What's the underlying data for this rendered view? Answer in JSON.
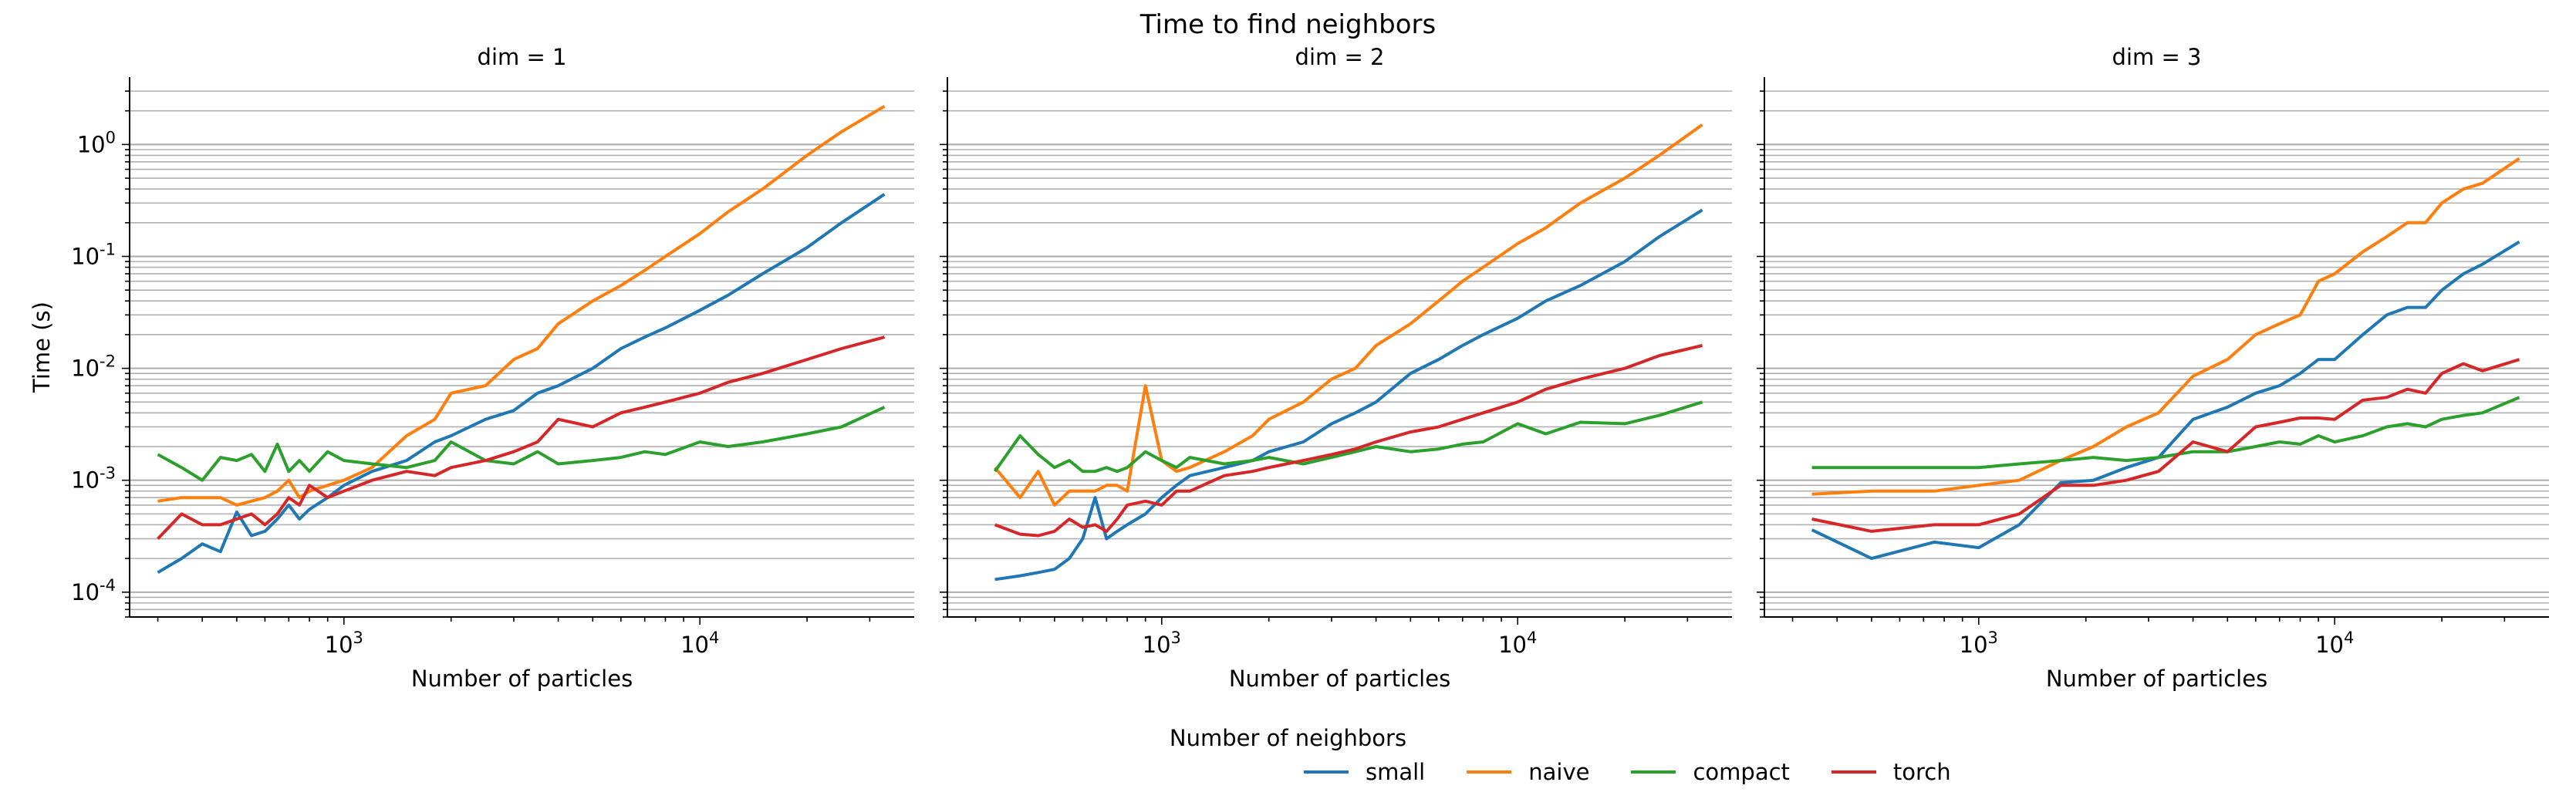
{
  "title": "Time to find neighbors",
  "legend": {
    "title": "Number of neighbors",
    "position": "bottom-center",
    "entries": [
      {
        "name": "small",
        "color": "#1f77b4"
      },
      {
        "name": "naive",
        "color": "#ff7f0e"
      },
      {
        "name": "compact",
        "color": "#2ca02c"
      },
      {
        "name": "torch",
        "color": "#d62728"
      }
    ]
  },
  "chart_data": [
    {
      "type": "line",
      "title": "dim = 1",
      "xlabel": "Number of particles",
      "ylabel": "Time (s)",
      "xscale": "log",
      "yscale": "log",
      "xlim": [
        250,
        40000
      ],
      "ylim": [
        6e-05,
        4
      ],
      "xticks": [
        "10^3",
        "10^4"
      ],
      "yticks": [
        "10^-4",
        "10^-3",
        "10^-2",
        "10^-1",
        "10^0"
      ],
      "grid": true,
      "series": [
        {
          "name": "small",
          "x": [
            300,
            350,
            400,
            450,
            500,
            550,
            600,
            650,
            700,
            750,
            800,
            900,
            1000,
            1200,
            1500,
            1800,
            2000,
            2500,
            3000,
            3500,
            4000,
            5000,
            6000,
            7000,
            8000,
            10000,
            12000,
            15000,
            20000,
            25000,
            33000
          ],
          "y": [
            0.00015,
            0.0002,
            0.00027,
            0.00023,
            0.00052,
            0.00032,
            0.00035,
            0.00045,
            0.0006,
            0.00045,
            0.00055,
            0.0007,
            0.0009,
            0.0012,
            0.0015,
            0.0022,
            0.0025,
            0.0035,
            0.0042,
            0.006,
            0.007,
            0.01,
            0.015,
            0.019,
            0.023,
            0.033,
            0.045,
            0.07,
            0.12,
            0.2,
            0.36
          ]
        },
        {
          "name": "naive",
          "x": [
            300,
            350,
            400,
            450,
            500,
            550,
            600,
            650,
            700,
            750,
            800,
            900,
            1000,
            1200,
            1500,
            1800,
            2000,
            2500,
            3000,
            3500,
            4000,
            5000,
            6000,
            7000,
            8000,
            10000,
            12000,
            15000,
            20000,
            25000,
            33000
          ],
          "y": [
            0.00065,
            0.0007,
            0.0007,
            0.0007,
            0.0006,
            0.00065,
            0.0007,
            0.0008,
            0.001,
            0.0007,
            0.0008,
            0.0009,
            0.001,
            0.0013,
            0.0025,
            0.0035,
            0.006,
            0.007,
            0.012,
            0.015,
            0.025,
            0.04,
            0.055,
            0.075,
            0.1,
            0.16,
            0.25,
            0.4,
            0.8,
            1.3,
            2.2
          ]
        },
        {
          "name": "compact",
          "x": [
            300,
            350,
            400,
            450,
            500,
            550,
            600,
            650,
            700,
            750,
            800,
            900,
            1000,
            1200,
            1500,
            1800,
            2000,
            2500,
            3000,
            3500,
            4000,
            5000,
            6000,
            7000,
            8000,
            10000,
            12000,
            15000,
            20000,
            25000,
            33000
          ],
          "y": [
            0.0017,
            0.0013,
            0.001,
            0.0016,
            0.0015,
            0.0017,
            0.0012,
            0.0021,
            0.0012,
            0.0015,
            0.0012,
            0.0018,
            0.0015,
            0.0014,
            0.0013,
            0.0015,
            0.0022,
            0.0015,
            0.0014,
            0.0018,
            0.0014,
            0.0015,
            0.0016,
            0.0018,
            0.0017,
            0.0022,
            0.002,
            0.0022,
            0.0026,
            0.003,
            0.0045
          ]
        },
        {
          "name": "torch",
          "x": [
            300,
            350,
            400,
            450,
            500,
            550,
            600,
            650,
            700,
            750,
            800,
            900,
            1000,
            1200,
            1500,
            1800,
            2000,
            2500,
            3000,
            3500,
            4000,
            5000,
            6000,
            7000,
            8000,
            10000,
            12000,
            15000,
            20000,
            25000,
            33000
          ],
          "y": [
            0.0003,
            0.0005,
            0.0004,
            0.0004,
            0.00045,
            0.0005,
            0.0004,
            0.0005,
            0.0007,
            0.0006,
            0.0009,
            0.0007,
            0.0008,
            0.001,
            0.0012,
            0.0011,
            0.0013,
            0.0015,
            0.0018,
            0.0022,
            0.0035,
            0.003,
            0.004,
            0.0045,
            0.005,
            0.006,
            0.0075,
            0.009,
            0.012,
            0.015,
            0.019
          ]
        }
      ]
    },
    {
      "type": "line",
      "title": "dim = 2",
      "xlabel": "Number of particles",
      "ylabel": "",
      "xscale": "log",
      "yscale": "log",
      "xlim": [
        250,
        40000
      ],
      "ylim": [
        6e-05,
        4
      ],
      "xticks": [
        "10^3",
        "10^4"
      ],
      "yticks": [],
      "grid": true,
      "series": [
        {
          "name": "small",
          "x": [
            340,
            400,
            450,
            500,
            550,
            600,
            650,
            700,
            750,
            800,
            900,
            1000,
            1100,
            1200,
            1500,
            1800,
            2000,
            2500,
            3000,
            3500,
            4000,
            5000,
            6000,
            7000,
            8000,
            10000,
            12000,
            15000,
            20000,
            25000,
            33000
          ],
          "y": [
            0.00013,
            0.00014,
            0.00015,
            0.00016,
            0.0002,
            0.0003,
            0.0007,
            0.0003,
            0.00035,
            0.0004,
            0.0005,
            0.0007,
            0.0009,
            0.0011,
            0.0013,
            0.0015,
            0.0018,
            0.0022,
            0.0032,
            0.004,
            0.005,
            0.009,
            0.012,
            0.016,
            0.02,
            0.028,
            0.04,
            0.055,
            0.09,
            0.15,
            0.26
          ]
        },
        {
          "name": "naive",
          "x": [
            340,
            400,
            450,
            500,
            550,
            600,
            650,
            700,
            750,
            800,
            900,
            1000,
            1100,
            1200,
            1500,
            1800,
            2000,
            2500,
            3000,
            3500,
            4000,
            5000,
            6000,
            7000,
            8000,
            10000,
            12000,
            15000,
            20000,
            25000,
            33000
          ],
          "y": [
            0.0013,
            0.0007,
            0.0012,
            0.0006,
            0.0008,
            0.0008,
            0.0008,
            0.0009,
            0.0009,
            0.0008,
            0.007,
            0.0015,
            0.0012,
            0.0013,
            0.0018,
            0.0025,
            0.0035,
            0.005,
            0.008,
            0.01,
            0.016,
            0.025,
            0.04,
            0.06,
            0.08,
            0.13,
            0.18,
            0.3,
            0.5,
            0.8,
            1.5
          ]
        },
        {
          "name": "compact",
          "x": [
            340,
            400,
            450,
            500,
            550,
            600,
            650,
            700,
            750,
            800,
            900,
            1000,
            1100,
            1200,
            1500,
            1800,
            2000,
            2500,
            3000,
            3500,
            4000,
            5000,
            6000,
            7000,
            8000,
            10000,
            12000,
            15000,
            20000,
            25000,
            33000
          ],
          "y": [
            0.0012,
            0.0025,
            0.0017,
            0.0013,
            0.0015,
            0.0012,
            0.0012,
            0.0013,
            0.0012,
            0.0013,
            0.0018,
            0.0015,
            0.0013,
            0.0016,
            0.0014,
            0.0015,
            0.0016,
            0.0014,
            0.0016,
            0.0018,
            0.002,
            0.0018,
            0.0019,
            0.0021,
            0.0022,
            0.0032,
            0.0026,
            0.0033,
            0.0032,
            0.0038,
            0.005
          ]
        },
        {
          "name": "torch",
          "x": [
            340,
            400,
            450,
            500,
            550,
            600,
            650,
            700,
            750,
            800,
            900,
            1000,
            1100,
            1200,
            1500,
            1800,
            2000,
            2500,
            3000,
            3500,
            4000,
            5000,
            6000,
            7000,
            8000,
            10000,
            12000,
            15000,
            20000,
            25000,
            33000
          ],
          "y": [
            0.0004,
            0.00033,
            0.00032,
            0.00035,
            0.00045,
            0.00038,
            0.0004,
            0.00035,
            0.00045,
            0.0006,
            0.00065,
            0.0006,
            0.0008,
            0.0008,
            0.0011,
            0.0012,
            0.0013,
            0.0015,
            0.0017,
            0.0019,
            0.0022,
            0.0027,
            0.003,
            0.0035,
            0.004,
            0.005,
            0.0065,
            0.008,
            0.01,
            0.013,
            0.016
          ]
        }
      ]
    },
    {
      "type": "line",
      "title": "dim = 3",
      "xlabel": "Number of particles",
      "ylabel": "",
      "xscale": "log",
      "yscale": "log",
      "xlim": [
        250,
        40000
      ],
      "ylim": [
        6e-05,
        4
      ],
      "xticks": [
        "10^3",
        "10^4"
      ],
      "yticks": [],
      "grid": true,
      "series": [
        {
          "name": "small",
          "x": [
            340,
            500,
            750,
            1000,
            1300,
            1700,
            2100,
            2600,
            3200,
            4000,
            5000,
            6000,
            7000,
            8000,
            9000,
            10000,
            12000,
            14000,
            16000,
            18000,
            20000,
            23000,
            26000,
            33000
          ],
          "y": [
            0.00036,
            0.0002,
            0.00028,
            0.00025,
            0.0004,
            0.00095,
            0.001,
            0.0013,
            0.0016,
            0.0035,
            0.0045,
            0.006,
            0.007,
            0.009,
            0.012,
            0.012,
            0.02,
            0.03,
            0.035,
            0.035,
            0.05,
            0.07,
            0.085,
            0.135
          ]
        },
        {
          "name": "naive",
          "x": [
            340,
            500,
            750,
            1000,
            1300,
            1700,
            2100,
            2600,
            3200,
            4000,
            5000,
            6000,
            7000,
            8000,
            9000,
            10000,
            12000,
            14000,
            16000,
            18000,
            20000,
            23000,
            26000,
            33000
          ],
          "y": [
            0.00075,
            0.0008,
            0.0008,
            0.0009,
            0.001,
            0.0015,
            0.002,
            0.003,
            0.004,
            0.0085,
            0.012,
            0.02,
            0.025,
            0.03,
            0.06,
            0.07,
            0.11,
            0.15,
            0.2,
            0.2,
            0.3,
            0.4,
            0.45,
            0.75
          ]
        },
        {
          "name": "compact",
          "x": [
            340,
            500,
            750,
            1000,
            1300,
            1700,
            2100,
            2600,
            3200,
            4000,
            5000,
            6000,
            7000,
            8000,
            9000,
            10000,
            12000,
            14000,
            16000,
            18000,
            20000,
            23000,
            26000,
            33000
          ],
          "y": [
            0.0013,
            0.0013,
            0.0013,
            0.0013,
            0.0014,
            0.0015,
            0.0016,
            0.0015,
            0.0016,
            0.0018,
            0.0018,
            0.002,
            0.0022,
            0.0021,
            0.0025,
            0.0022,
            0.0025,
            0.003,
            0.0032,
            0.003,
            0.0035,
            0.0038,
            0.004,
            0.0055
          ]
        },
        {
          "name": "torch",
          "x": [
            340,
            500,
            750,
            1000,
            1300,
            1700,
            2100,
            2600,
            3200,
            4000,
            5000,
            6000,
            7000,
            8000,
            9000,
            10000,
            12000,
            14000,
            16000,
            18000,
            20000,
            23000,
            26000,
            33000
          ],
          "y": [
            0.00045,
            0.00035,
            0.0004,
            0.0004,
            0.0005,
            0.0009,
            0.0009,
            0.001,
            0.0012,
            0.0022,
            0.0018,
            0.003,
            0.0033,
            0.0036,
            0.0036,
            0.0035,
            0.0052,
            0.0055,
            0.0065,
            0.006,
            0.009,
            0.011,
            0.0095,
            0.012
          ]
        }
      ]
    }
  ]
}
